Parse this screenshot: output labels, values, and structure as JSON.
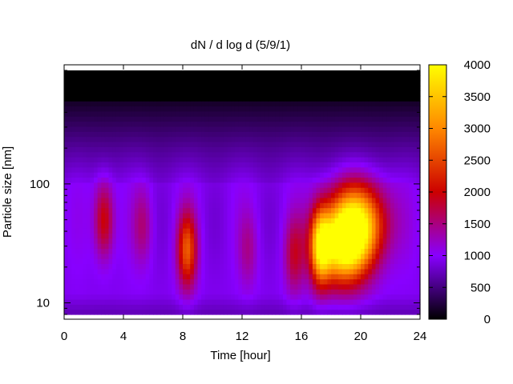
{
  "chart_data": {
    "type": "heatmap",
    "title": "dN / d log d (5/9/1)",
    "xlabel": "Time [hour]",
    "ylabel": "Particle size [nm]",
    "x_range": [
      0,
      24
    ],
    "y_range": [
      8,
      900
    ],
    "y_scale": "log",
    "x_ticks": [
      0,
      4,
      8,
      12,
      16,
      20,
      24
    ],
    "x_tick_labels": [
      "0",
      "4",
      "8",
      "12",
      "16",
      "20",
      "24"
    ],
    "y_ticks": [
      10,
      100
    ],
    "y_tick_labels": [
      "10",
      "100"
    ],
    "colorbar": {
      "range": [
        0,
        4000
      ],
      "ticks": [
        0,
        500,
        1000,
        1500,
        2000,
        2500,
        3000,
        3500,
        4000
      ],
      "tick_labels": [
        "0",
        "500",
        "1000",
        "1500",
        "2000",
        "2500",
        "3000",
        "3500",
        "4000"
      ],
      "colormap": "gnuplot-pm3d-black-purple-red-yellow",
      "colors": [
        "#000000",
        "#8800ff",
        "#cc0000",
        "#ff8800",
        "#ffff00"
      ]
    },
    "hotspots": [
      {
        "time_h": 2.7,
        "size_nm": 50,
        "peak": 2100
      },
      {
        "time_h": 5.3,
        "size_nm": 45,
        "peak": 1500
      },
      {
        "time_h": 8.3,
        "size_nm": 28,
        "peak": 2600
      },
      {
        "time_h": 12.4,
        "size_nm": 28,
        "peak": 1400
      },
      {
        "time_h": 15.5,
        "size_nm": 25,
        "peak": 1700
      },
      {
        "time_h": 17.3,
        "size_nm": 30,
        "peak": 3000
      },
      {
        "time_h": 18.8,
        "size_nm": 30,
        "peak": 3900
      },
      {
        "time_h": 19.8,
        "size_nm": 50,
        "peak": 3300
      }
    ],
    "grid": false,
    "legend": "none"
  }
}
